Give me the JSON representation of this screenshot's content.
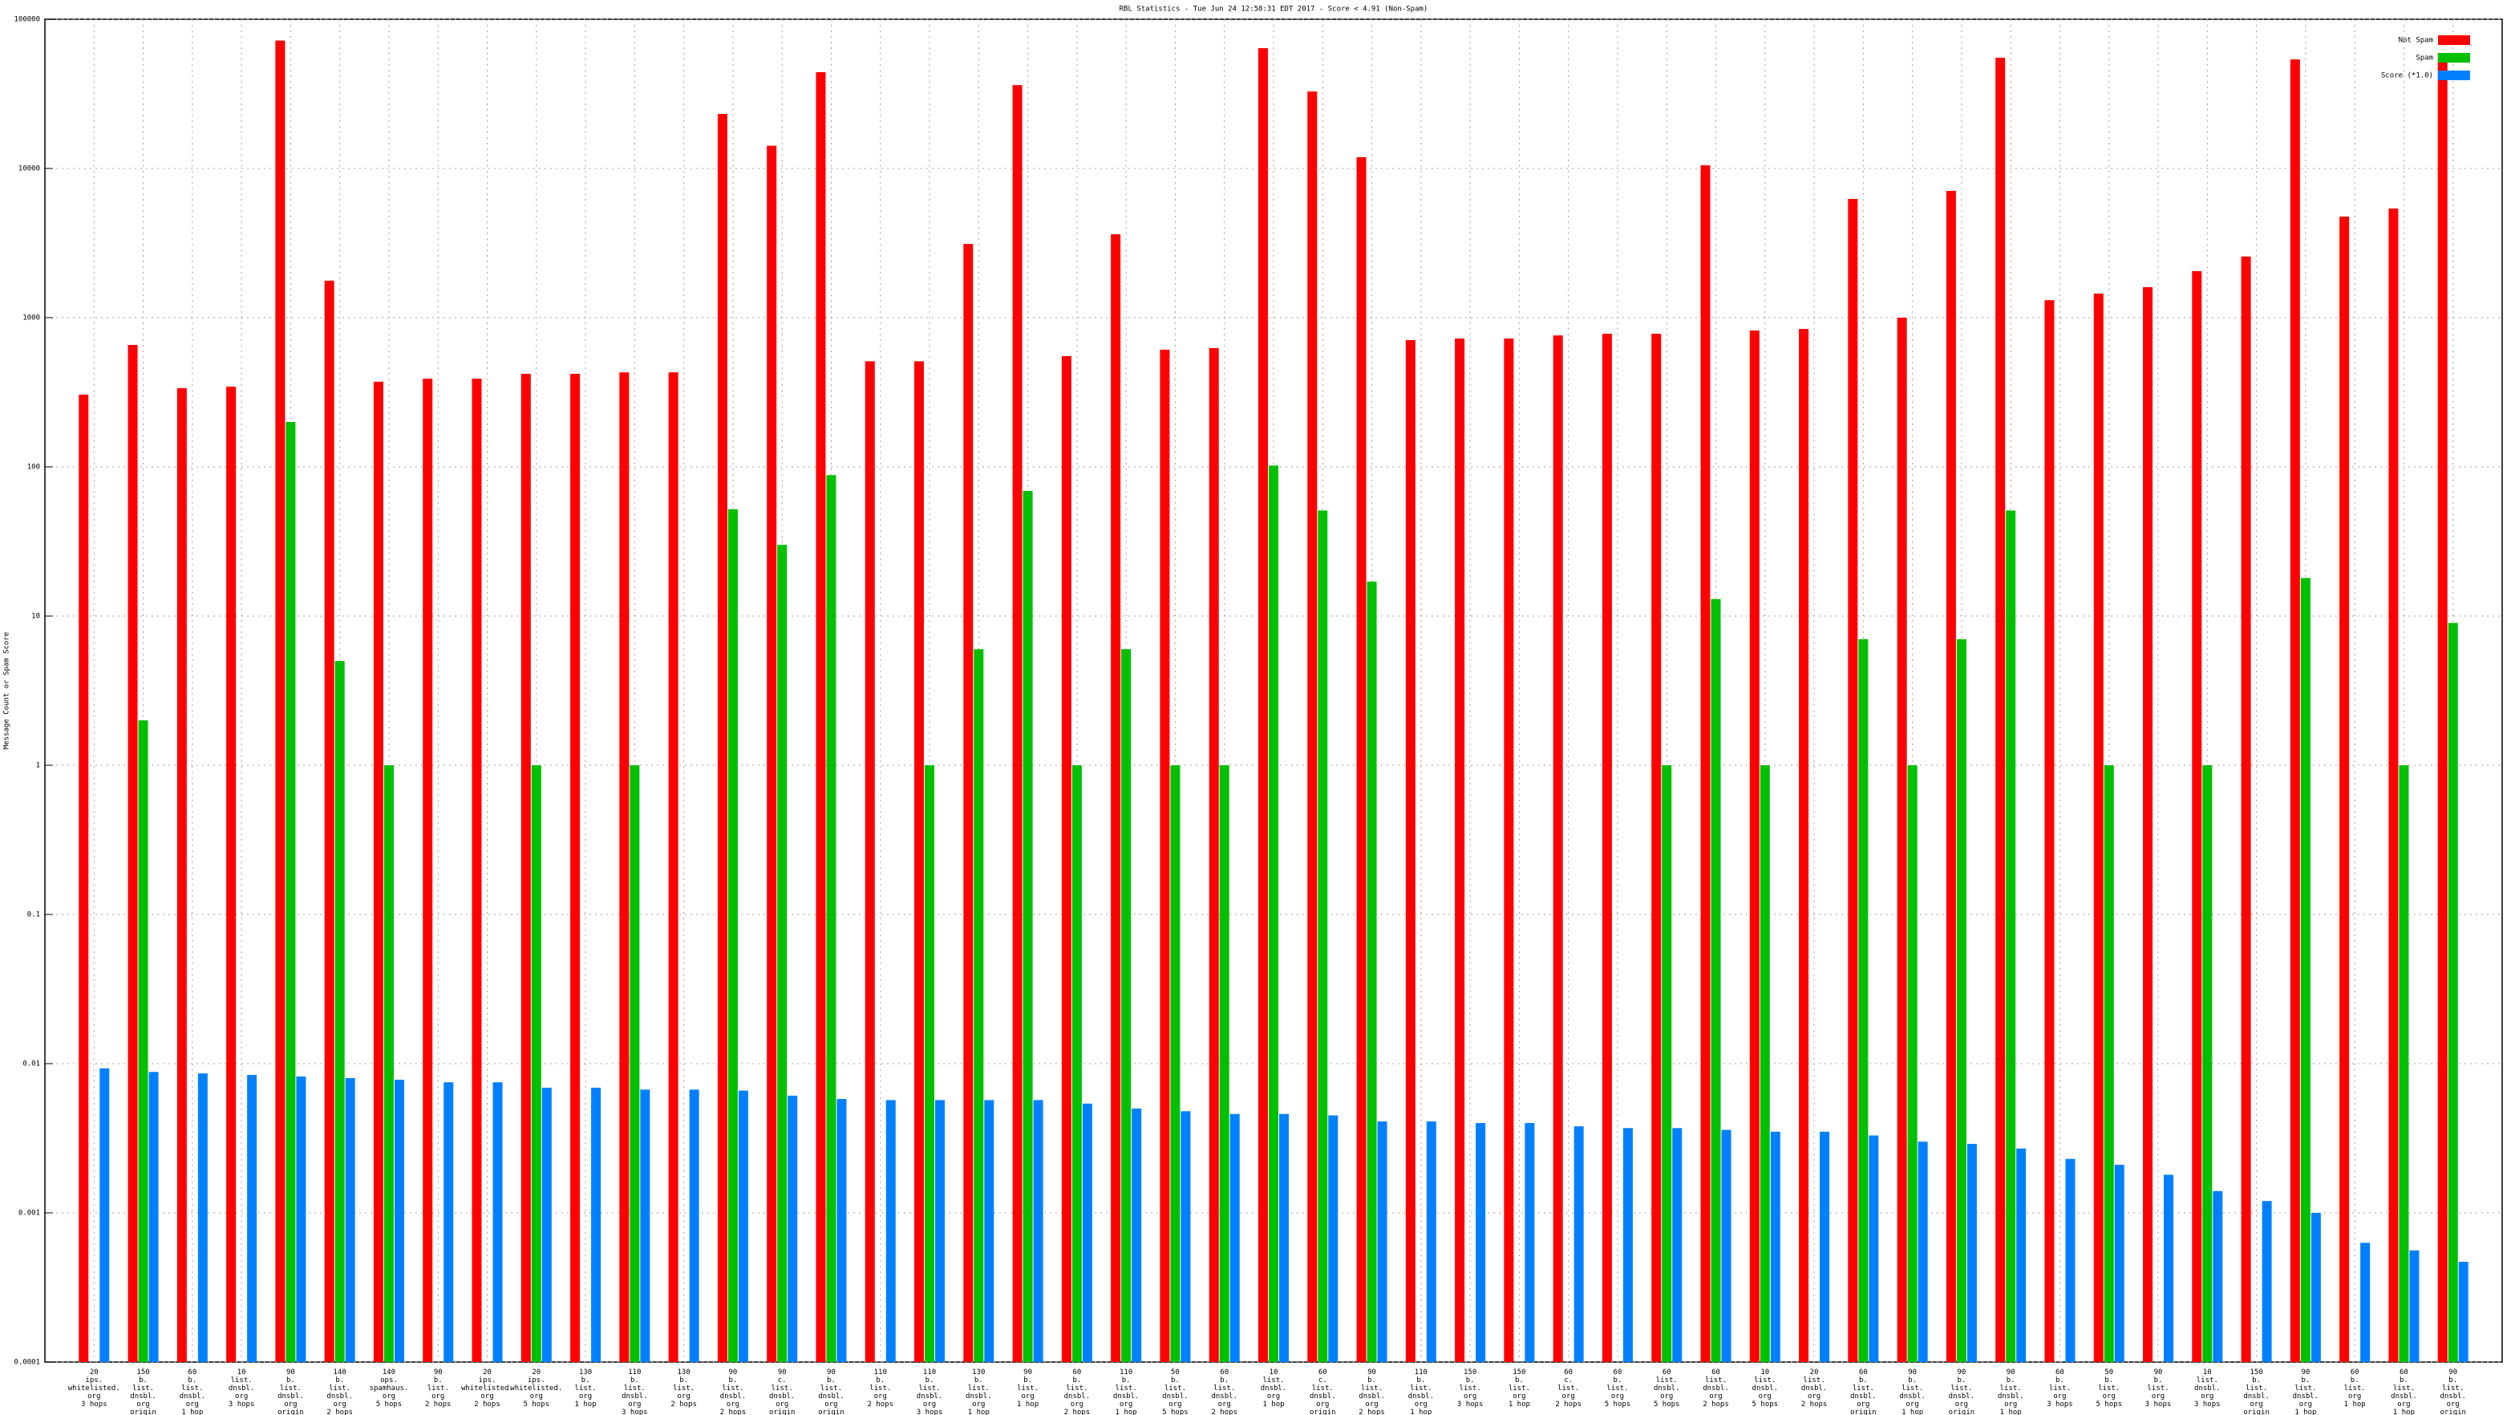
{
  "chart_data": {
    "type": "bar",
    "title": "RBL Statistics - Tue Jun 24 12:58:31 EDT 2017 - Score < 4.91 (Non-Spam)",
    "y_label": "Message Count or Spam Score",
    "log": true,
    "grid": true,
    "legend": "top-right",
    "ylim": [
      0.0001,
      100000
    ],
    "yticks": [
      0.0001,
      0.001,
      0.01,
      0.1,
      1,
      10,
      100,
      1000,
      10000,
      100000
    ],
    "categories": [
      [
        "20",
        "ips.",
        "whitelisted.",
        "org",
        "3 hops"
      ],
      [
        "150",
        "b.",
        "list.",
        "dnsbl.",
        "org",
        "origin"
      ],
      [
        "60",
        "b.",
        "list.",
        "dnsbl.",
        "org",
        "1 hop"
      ],
      [
        "10",
        "list.",
        "dnsbl.",
        "org",
        "3 hops"
      ],
      [
        "90",
        "b.",
        "list.",
        "dnsbl.",
        "org",
        "origin"
      ],
      [
        "140",
        "b.",
        "list.",
        "dnsbl.",
        "org",
        "2 hops"
      ],
      [
        "140",
        "ops.",
        "spamhaus.",
        "org",
        "5 hops"
      ],
      [
        "90",
        "b.",
        "list.",
        "org",
        "2 hops"
      ],
      [
        "20",
        "ips.",
        "whitelisted.",
        "org",
        "2 hops"
      ],
      [
        "20",
        "ips.",
        "whitelisted.",
        "org",
        "5 hops"
      ],
      [
        "130",
        "b.",
        "list.",
        "org",
        "1 hop"
      ],
      [
        "110",
        "b.",
        "list.",
        "dnsbl.",
        "org",
        "3 hops"
      ],
      [
        "130",
        "b.",
        "list.",
        "org",
        "2 hops"
      ],
      [
        "90",
        "b.",
        "list.",
        "dnsbl.",
        "org",
        "2 hops"
      ],
      [
        "90",
        "c.",
        "list.",
        "dnsbl.",
        "org",
        "origin"
      ],
      [
        "90",
        "b.",
        "list.",
        "dnsbl.",
        "org",
        "origin"
      ],
      [
        "110",
        "b.",
        "list.",
        "org",
        "2 hops"
      ],
      [
        "110",
        "b.",
        "list.",
        "dnsbl.",
        "org",
        "3 hops"
      ],
      [
        "130",
        "b.",
        "list.",
        "dnsbl.",
        "org",
        "1 hop"
      ],
      [
        "90",
        "b.",
        "list.",
        "org",
        "1 hop"
      ],
      [
        "60",
        "b.",
        "list.",
        "dnsbl.",
        "org",
        "2 hops"
      ],
      [
        "110",
        "b.",
        "list.",
        "dnsbl.",
        "org",
        "1 hop"
      ],
      [
        "50",
        "b.",
        "list.",
        "dnsbl.",
        "org",
        "5 hops"
      ],
      [
        "60",
        "b.",
        "list.",
        "dnsbl.",
        "org",
        "2 hops"
      ],
      [
        "10",
        "list.",
        "dnsbl.",
        "org",
        "1 hop"
      ],
      [
        "60",
        "c.",
        "list.",
        "dnsbl.",
        "org",
        "origin"
      ],
      [
        "90",
        "b.",
        "list.",
        "dnsbl.",
        "org",
        "2 hops"
      ],
      [
        "110",
        "b.",
        "list.",
        "dnsbl.",
        "org",
        "1 hop"
      ],
      [
        "150",
        "b.",
        "list.",
        "org",
        "3 hops"
      ],
      [
        "150",
        "b.",
        "list.",
        "org",
        "1 hop"
      ],
      [
        "60",
        "c.",
        "list.",
        "org",
        "2 hops"
      ],
      [
        "60",
        "b.",
        "list.",
        "org",
        "5 hops"
      ],
      [
        "60",
        "list.",
        "dnsbl.",
        "org",
        "5 hops"
      ],
      [
        "60",
        "list.",
        "dnsbl.",
        "org",
        "2 hops"
      ],
      [
        "10",
        "list.",
        "dnsbl.",
        "org",
        "5 hops"
      ],
      [
        "20",
        "list.",
        "dnsbl.",
        "org",
        "2 hops"
      ],
      [
        "60",
        "b.",
        "list.",
        "dnsbl.",
        "org",
        "origin"
      ],
      [
        "90",
        "b.",
        "list.",
        "dnsbl.",
        "org",
        "1 hop"
      ],
      [
        "90",
        "b.",
        "list.",
        "dnsbl.",
        "org",
        "origin"
      ],
      [
        "90",
        "b.",
        "list.",
        "dnsbl.",
        "org",
        "1 hop"
      ],
      [
        "60",
        "b.",
        "list.",
        "org",
        "3 hops"
      ],
      [
        "50",
        "b.",
        "list.",
        "org",
        "5 hops"
      ],
      [
        "90",
        "b.",
        "list.",
        "org",
        "3 hops"
      ],
      [
        "10",
        "list.",
        "dnsbl.",
        "org",
        "3 hops"
      ],
      [
        "150",
        "b.",
        "list.",
        "dnsbl.",
        "org",
        "origin"
      ],
      [
        "90",
        "b.",
        "list.",
        "dnsbl.",
        "org",
        "1 hop"
      ],
      [
        "60",
        "b.",
        "list.",
        "org",
        "1 hop"
      ],
      [
        "60",
        "b.",
        "list.",
        "dnsbl.",
        "org",
        "1 hop"
      ],
      [
        "90",
        "b.",
        "list.",
        "dnsbl.",
        "org",
        "origin"
      ]
    ],
    "series": [
      {
        "name": "Not Spam",
        "color": "#ff0000",
        "values": [
          305,
          656,
          337,
          345,
          72000,
          1770,
          372,
          390,
          390,
          420,
          420,
          430,
          430,
          23200,
          14200,
          44200,
          510,
          510,
          3120,
          36200,
          552,
          3620,
          610,
          625,
          64000,
          32800,
          11900,
          707,
          725,
          725,
          760,
          780,
          780,
          10500,
          820,
          840,
          6250,
          1000,
          7080,
          55200,
          1310,
          1450,
          1600,
          2050,
          2570,
          53800,
          4760,
          5390,
          59500
        ]
      },
      {
        "name": "Spam",
        "color": "#00c000",
        "values": [
          null,
          2,
          null,
          null,
          200,
          5,
          1,
          null,
          null,
          1,
          null,
          1,
          null,
          52,
          30,
          88,
          null,
          1,
          6,
          69,
          1,
          6,
          1,
          1,
          102,
          51,
          17,
          null,
          null,
          null,
          null,
          null,
          1,
          13,
          1,
          null,
          7,
          1,
          7,
          51,
          null,
          1,
          null,
          1,
          null,
          18,
          null,
          1,
          9
        ]
      },
      {
        "name": "Score (*1.0)",
        "color": "#0080ff",
        "values": [
          0.0093,
          0.0088,
          0.0086,
          0.0084,
          0.0082,
          0.008,
          0.0078,
          0.0075,
          0.0075,
          0.0069,
          0.0069,
          0.0067,
          0.0067,
          0.0066,
          0.0061,
          0.0058,
          0.0057,
          0.0057,
          0.0057,
          0.0057,
          0.0054,
          0.005,
          0.0048,
          0.0046,
          0.0046,
          0.0045,
          0.0041,
          0.0041,
          0.004,
          0.004,
          0.0038,
          0.0037,
          0.0037,
          0.0036,
          0.0035,
          0.0035,
          0.0033,
          0.003,
          0.0029,
          0.0027,
          0.0023,
          0.0021,
          0.0018,
          0.0014,
          0.0012,
          0.001,
          0.00063,
          0.00056,
          0.00047
        ]
      }
    ]
  }
}
